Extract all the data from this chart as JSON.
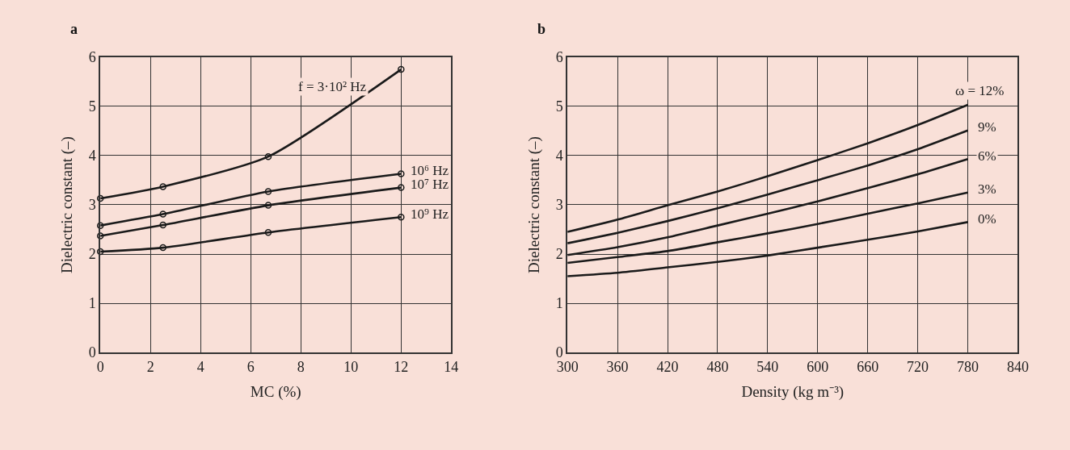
{
  "chart_data": [
    {
      "type": "line",
      "title": "a",
      "xlabel": "MC (%)",
      "ylabel": "Dielectric constant (–)",
      "xlim": [
        0,
        14
      ],
      "xticks": [
        0,
        2,
        4,
        6,
        8,
        10,
        12,
        14
      ],
      "ylim": [
        0,
        6
      ],
      "yticks": [
        0,
        1,
        2,
        3,
        4,
        5,
        6
      ],
      "grid": true,
      "marker": "circle",
      "line_style": "solid",
      "series": [
        {
          "name": "f = 3·10² Hz",
          "color": "#1a1a1a",
          "x": [
            0,
            2.5,
            6.7,
            12
          ],
          "values": [
            3.13,
            3.37,
            3.98,
            5.75
          ]
        },
        {
          "name": "10⁶ Hz",
          "color": "#1a1a1a",
          "x": [
            0,
            2.5,
            6.7,
            12
          ],
          "values": [
            2.58,
            2.81,
            3.27,
            3.63
          ]
        },
        {
          "name": "10⁷ Hz",
          "color": "#1a1a1a",
          "x": [
            0,
            2.5,
            6.7,
            12
          ],
          "values": [
            2.37,
            2.59,
            2.99,
            3.35
          ]
        },
        {
          "name": "10⁹ Hz",
          "color": "#1a1a1a",
          "x": [
            0,
            2.5,
            6.7,
            12
          ],
          "values": [
            2.05,
            2.13,
            2.44,
            2.75
          ]
        }
      ]
    },
    {
      "type": "line",
      "title": "b",
      "xlabel": "Density (kg m⁻³)",
      "ylabel": "Dielectric constant (–)",
      "xlim": [
        300,
        840
      ],
      "xticks": [
        300,
        360,
        420,
        480,
        540,
        600,
        660,
        720,
        780,
        840
      ],
      "ylim": [
        0,
        6
      ],
      "yticks": [
        0,
        1,
        2,
        3,
        4,
        5,
        6
      ],
      "grid": true,
      "marker": "none",
      "line_style": "solid",
      "x": [
        300,
        360,
        420,
        480,
        540,
        600,
        660,
        720,
        780
      ],
      "series": [
        {
          "name": "ω = 12%",
          "color": "#1a1a1a",
          "values": [
            2.45,
            2.7,
            2.99,
            3.27,
            3.58,
            3.91,
            4.25,
            4.62,
            5.03
          ]
        },
        {
          "name": "9%",
          "color": "#1a1a1a",
          "values": [
            2.22,
            2.43,
            2.67,
            2.93,
            3.21,
            3.5,
            3.8,
            4.13,
            4.51
          ]
        },
        {
          "name": "6%",
          "color": "#1a1a1a",
          "values": [
            1.98,
            2.14,
            2.34,
            2.58,
            2.82,
            3.07,
            3.34,
            3.62,
            3.93
          ]
        },
        {
          "name": "3%",
          "color": "#1a1a1a",
          "values": [
            1.82,
            1.94,
            2.06,
            2.24,
            2.42,
            2.61,
            2.82,
            3.03,
            3.25
          ]
        },
        {
          "name": "0%",
          "color": "#1a1a1a",
          "values": [
            1.55,
            1.62,
            1.73,
            1.84,
            1.97,
            2.13,
            2.29,
            2.46,
            2.65
          ]
        }
      ]
    }
  ]
}
